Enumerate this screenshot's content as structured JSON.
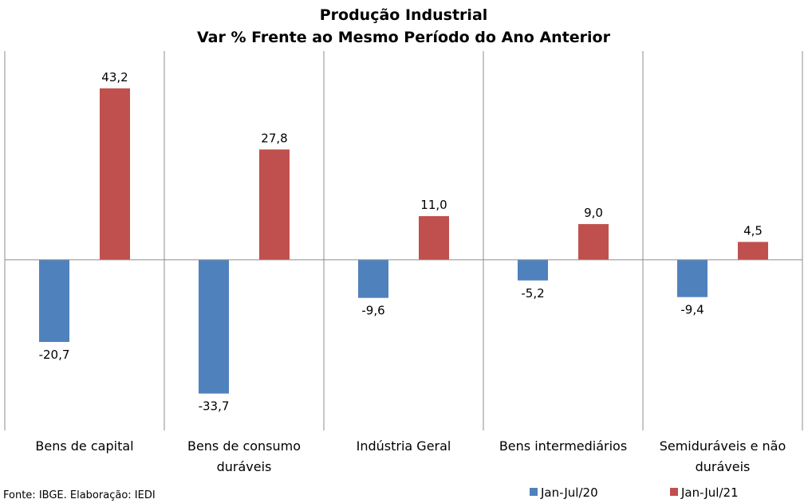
{
  "chart_data": {
    "type": "bar",
    "title": "Produção Industrial",
    "subtitle": "Var % Frente ao Mesmo Período do Ano Anterior",
    "categories": [
      [
        "Bens de capital"
      ],
      [
        "Bens de consumo",
        "duráveis"
      ],
      [
        "Indústria Geral"
      ],
      [
        "Bens intermediários"
      ],
      [
        "Semiduráveis e não",
        "duráveis"
      ]
    ],
    "series": [
      {
        "name": "Jan-Jul/20",
        "color": "#4F81BD",
        "values": [
          -20.7,
          -33.7,
          -9.6,
          -5.2,
          -9.4
        ],
        "labels": [
          "-20,7",
          "-33,7",
          "-9,6",
          "-5,2",
          "-9,4"
        ]
      },
      {
        "name": "Jan-Jul/21",
        "color": "#C0504D",
        "values": [
          43.2,
          27.8,
          11.0,
          9.0,
          4.5
        ],
        "labels": [
          "43,2",
          "27,8",
          "11,0",
          "9,0",
          "4,5"
        ]
      }
    ],
    "ylim": [
      -43.0,
      52.6
    ],
    "grid": false,
    "legend_position": "bottom-right"
  },
  "source_note": "Fonte: IBGE. Elaboração: IEDI"
}
